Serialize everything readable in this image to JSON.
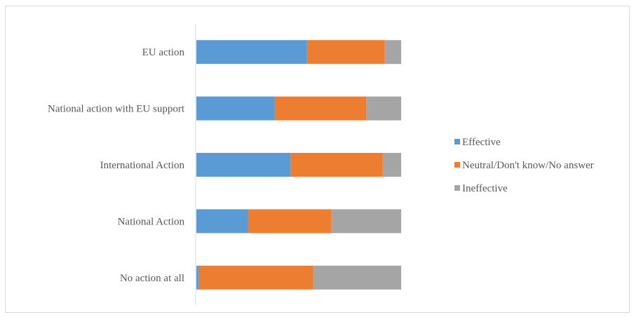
{
  "chart_data": {
    "type": "bar",
    "orientation": "horizontal",
    "stacked": "100%",
    "categories": [
      "EU action",
      "National action with EU support",
      "International Action",
      "National Action",
      "No action at all"
    ],
    "series": [
      {
        "name": "Effective",
        "color": "#5b9bd5",
        "values": [
          54,
          38,
          46,
          25,
          1
        ]
      },
      {
        "name": "Neutral/Don't know/No answer",
        "color": "#ed7d31",
        "values": [
          38,
          45,
          45,
          41,
          56
        ]
      },
      {
        "name": "Ineffective",
        "color": "#a5a5a5",
        "values": [
          8,
          17,
          9,
          34,
          43
        ]
      }
    ],
    "xlim": [
      0,
      100
    ],
    "grid": false,
    "legend_position": "right"
  }
}
